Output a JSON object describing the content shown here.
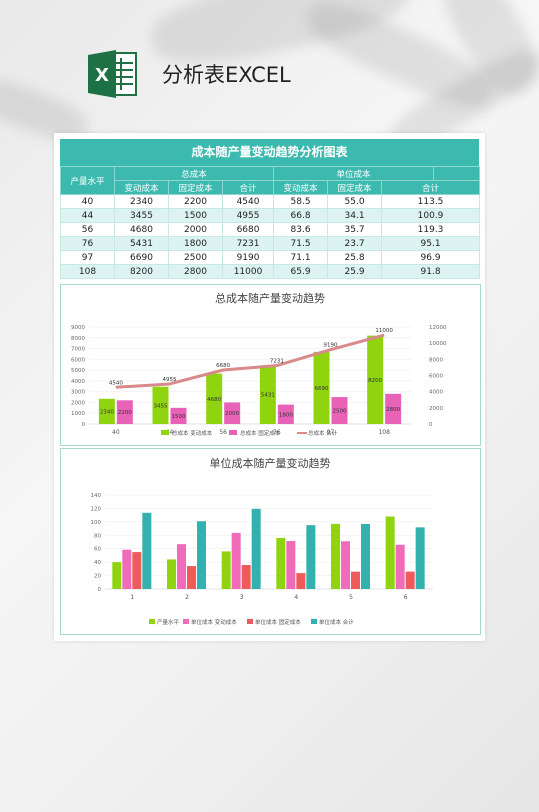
{
  "header": {
    "title": "分析表EXCEL",
    "icon": "excel-icon",
    "icon_letter": "X",
    "icon_color": "#1e7145"
  },
  "table": {
    "title": "成本随产量变动趋势分析图表",
    "col_output": "产量水平",
    "group_total": "总成本",
    "group_unit": "单位成本",
    "sub_variable": "变动成本",
    "sub_fixed": "固定成本",
    "sub_sum": "合计",
    "rows": [
      {
        "q": "40",
        "tv": "2340",
        "tf": "2200",
        "ts": "4540",
        "uv": "58.5",
        "uf": "55.0",
        "us": "113.5"
      },
      {
        "q": "44",
        "tv": "3455",
        "tf": "1500",
        "ts": "4955",
        "uv": "66.8",
        "uf": "34.1",
        "us": "100.9"
      },
      {
        "q": "56",
        "tv": "4680",
        "tf": "2000",
        "ts": "6680",
        "uv": "83.6",
        "uf": "35.7",
        "us": "119.3"
      },
      {
        "q": "76",
        "tv": "5431",
        "tf": "1800",
        "ts": "7231",
        "uv": "71.5",
        "uf": "23.7",
        "us": "95.1"
      },
      {
        "q": "97",
        "tv": "6690",
        "tf": "2500",
        "ts": "9190",
        "uv": "71.1",
        "uf": "25.8",
        "us": "96.9"
      },
      {
        "q": "108",
        "tv": "8200",
        "tf": "2800",
        "ts": "11000",
        "uv": "65.9",
        "uf": "25.9",
        "us": "91.8"
      }
    ]
  },
  "chart_data": [
    {
      "type": "bar",
      "title": "总成本随产量变动趋势",
      "categories": [
        "40",
        "44",
        "56",
        "76",
        "97",
        "108"
      ],
      "series": [
        {
          "name": "总成本 变动成本",
          "type": "bar",
          "axis": "left",
          "color": "#8fd40f",
          "values": [
            2340,
            3455,
            4680,
            5431,
            6690,
            8200
          ]
        },
        {
          "name": "总成本 固定成本",
          "type": "bar",
          "axis": "left",
          "color": "#e862b8",
          "values": [
            2200,
            1500,
            2000,
            1800,
            2500,
            2800
          ]
        },
        {
          "name": "总成本 合计",
          "type": "line",
          "axis": "right",
          "color": "#d98a8a",
          "values": [
            4540,
            4955,
            6680,
            7231,
            9190,
            11000
          ]
        }
      ],
      "yticks_left": [
        "9000",
        "8000",
        "7000",
        "6000",
        "5000",
        "4000",
        "3000",
        "2000",
        "1000",
        "0"
      ],
      "yticks_right": [
        "12000",
        "10000",
        "8000",
        "6000",
        "4000",
        "2000",
        "0"
      ],
      "ylim_left": [
        0,
        9000
      ],
      "ylim_right": [
        0,
        12000
      ],
      "legend": "bottom"
    },
    {
      "type": "bar",
      "title": "单位成本随产量变动趋势",
      "categories": [
        "1",
        "2",
        "3",
        "4",
        "5",
        "6"
      ],
      "series": [
        {
          "name": "产量水平",
          "color": "#8fd40f",
          "values": [
            40,
            44,
            56,
            76,
            97,
            108
          ]
        },
        {
          "name": "单位成本 变动成本",
          "color": "#f06bb8",
          "values": [
            58.5,
            66.8,
            83.6,
            71.5,
            71.1,
            65.9
          ]
        },
        {
          "name": "单位成本 固定成本",
          "color": "#ee5b5b",
          "values": [
            55.0,
            34.1,
            35.7,
            23.7,
            25.8,
            25.9
          ]
        },
        {
          "name": "单位成本 合计",
          "color": "#33b1ae",
          "values": [
            113.5,
            100.9,
            119.3,
            95.1,
            96.9,
            91.8
          ]
        }
      ],
      "yticks": [
        "140",
        "120",
        "100",
        "80",
        "60",
        "40",
        "20",
        "0"
      ],
      "ylim": [
        0,
        140
      ],
      "legend": "bottom"
    }
  ]
}
